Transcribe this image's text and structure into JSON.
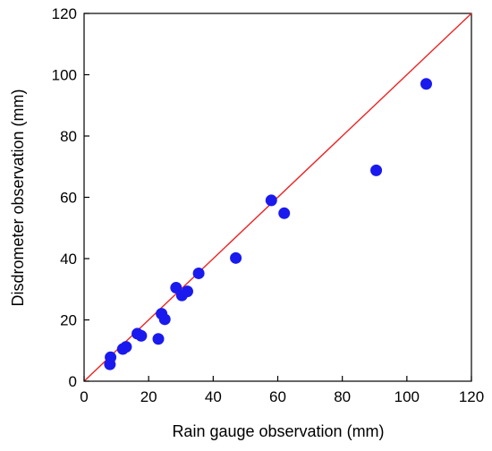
{
  "chart_data": {
    "type": "scatter",
    "title": "",
    "xlabel": "Rain gauge observation (mm)",
    "ylabel": "Disdrometer observation (mm)",
    "xlim": [
      0,
      120
    ],
    "ylim": [
      0,
      120
    ],
    "xticks": [
      "0",
      "20",
      "40",
      "60",
      "80",
      "100",
      "120"
    ],
    "yticks": [
      "0",
      "20",
      "40",
      "60",
      "80",
      "100",
      "120"
    ],
    "grid": false,
    "legend": "none",
    "points": [
      {
        "x": 8,
        "y": 5.5
      },
      {
        "x": 8.2,
        "y": 7.8
      },
      {
        "x": 12,
        "y": 10.5
      },
      {
        "x": 13,
        "y": 11.2
      },
      {
        "x": 16.5,
        "y": 15.5
      },
      {
        "x": 17.7,
        "y": 14.8
      },
      {
        "x": 23,
        "y": 13.8
      },
      {
        "x": 24,
        "y": 22
      },
      {
        "x": 25,
        "y": 20.2
      },
      {
        "x": 28.5,
        "y": 30.5
      },
      {
        "x": 30.3,
        "y": 28
      },
      {
        "x": 32,
        "y": 29.3
      },
      {
        "x": 35.5,
        "y": 35.2
      },
      {
        "x": 47,
        "y": 40.2
      },
      {
        "x": 58,
        "y": 59
      },
      {
        "x": 62,
        "y": 54.8
      },
      {
        "x": 90.5,
        "y": 68.8
      },
      {
        "x": 106,
        "y": 97
      }
    ],
    "reference_line": {
      "from": [
        0,
        0
      ],
      "to": [
        120,
        120
      ]
    },
    "colors": {
      "points": "#1a1aee",
      "reference_line": "#ee2222",
      "axes": "#000000"
    }
  }
}
